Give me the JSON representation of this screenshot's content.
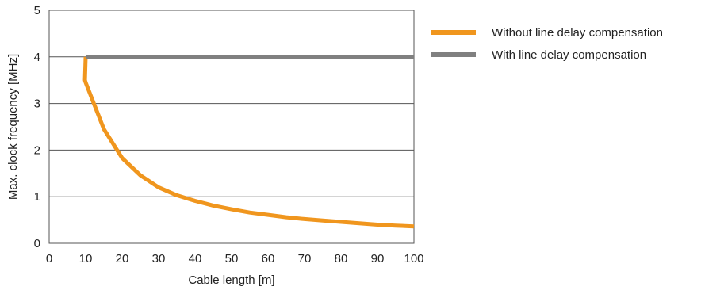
{
  "chart_data": {
    "type": "line",
    "xlabel": "Cable length [m]",
    "ylabel": "Max. clock frequency [MHz]",
    "xlim": [
      0,
      100
    ],
    "ylim": [
      0,
      5
    ],
    "xticks": [
      0,
      10,
      20,
      30,
      40,
      50,
      60,
      70,
      80,
      90,
      100
    ],
    "yticks": [
      0,
      1,
      2,
      3,
      4,
      5
    ],
    "grid": "horizontal",
    "legend_position": "right",
    "series": [
      {
        "name": "Without line delay compensation",
        "color": "#f0961e",
        "x": [
          10,
          9.8,
          10,
          12,
          15,
          20,
          25,
          30,
          35,
          40,
          45,
          50,
          55,
          60,
          65,
          70,
          75,
          80,
          85,
          90,
          95,
          100
        ],
        "y": [
          4.0,
          3.5,
          3.45,
          3.05,
          2.45,
          1.83,
          1.46,
          1.2,
          1.03,
          0.91,
          0.81,
          0.73,
          0.66,
          0.61,
          0.56,
          0.52,
          0.49,
          0.46,
          0.43,
          0.4,
          0.38,
          0.36
        ]
      },
      {
        "name": "With line delay compensation",
        "color": "#808080",
        "x": [
          10,
          100
        ],
        "y": [
          4.0,
          4.0
        ]
      }
    ]
  }
}
